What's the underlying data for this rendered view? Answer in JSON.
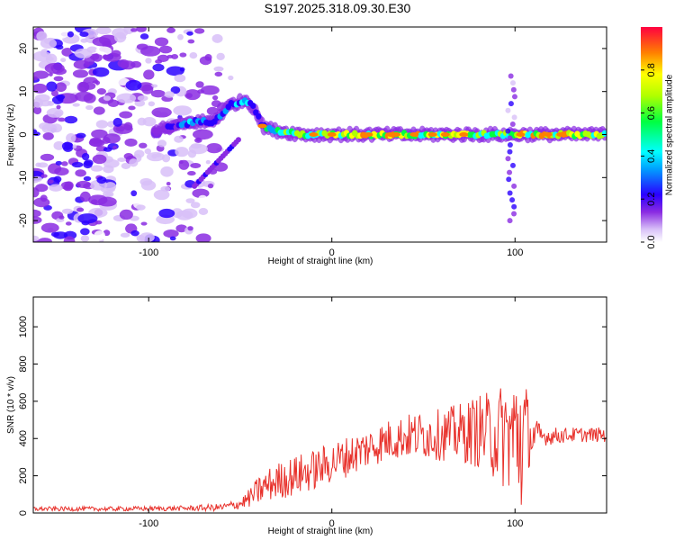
{
  "title": "S197.2025.318.09.30.E30",
  "chart_data": [
    {
      "type": "heatmap",
      "name": "spectrogram",
      "xlabel": "Height of straight line (km)",
      "ylabel": "Frequency (Hz)",
      "xlim": [
        -163,
        150
      ],
      "ylim": [
        -25,
        25
      ],
      "xticks": [
        -100,
        0,
        100
      ],
      "yticks": [
        20,
        10,
        0,
        -10,
        -20
      ],
      "colorbar": {
        "label": "Normalized spectral amplitude",
        "range": [
          0,
          1
        ],
        "ticks": [
          0.0,
          0.2,
          0.4,
          0.6,
          0.8
        ]
      },
      "ridge": {
        "x": [
          -95,
          -85,
          -75,
          -65,
          -55,
          -47,
          -42,
          -38,
          -32,
          -25,
          -15,
          -5,
          0,
          10,
          20,
          30,
          40,
          50,
          60,
          70,
          80,
          88,
          92,
          96,
          100,
          105,
          115,
          130,
          150
        ],
        "y": [
          1,
          2,
          3,
          3,
          7,
          8,
          6,
          2,
          1,
          0.5,
          0,
          0,
          0,
          0,
          0,
          0,
          0,
          0,
          0,
          0,
          0,
          0,
          0,
          0,
          0,
          0,
          0,
          0,
          0
        ],
        "amp": [
          0.3,
          0.35,
          0.45,
          0.3,
          0.4,
          0.55,
          0.45,
          0.5,
          0.6,
          0.7,
          0.75,
          0.8,
          0.85,
          0.85,
          0.9,
          0.95,
          0.9,
          0.85,
          0.85,
          0.85,
          0.8,
          0.7,
          0.7,
          0.75,
          0.85,
          0.9,
          0.95,
          0.9,
          0.85
        ]
      }
    },
    {
      "type": "line",
      "name": "snr",
      "xlabel": "Height of straight line (km)",
      "ylabel": "SNR (10 * v/v)",
      "xlim": [
        -163,
        150
      ],
      "ylim": [
        0,
        1160
      ],
      "xticks": [
        -100,
        0,
        100
      ],
      "yticks": [
        0,
        200,
        400,
        600,
        800,
        1000
      ],
      "series": [
        {
          "name": "SNR",
          "color": "#e8322c",
          "envelope_x": [
            -163,
            -120,
            -80,
            -60,
            -50,
            -45,
            -40,
            -35,
            -30,
            -20,
            -10,
            0,
            10,
            20,
            30,
            40,
            50,
            60,
            70,
            80,
            85,
            90,
            95,
            100,
            103,
            106,
            108,
            115,
            130,
            150
          ],
          "envelope_mean": [
            22,
            22,
            25,
            30,
            50,
            80,
            120,
            150,
            170,
            200,
            230,
            270,
            310,
            350,
            390,
            410,
            420,
            420,
            430,
            440,
            430,
            420,
            420,
            420,
            420,
            420,
            410,
            410,
            420,
            420
          ],
          "envelope_spread": [
            12,
            12,
            14,
            20,
            30,
            50,
            80,
            90,
            100,
            110,
            110,
            110,
            110,
            110,
            110,
            120,
            130,
            140,
            160,
            200,
            220,
            260,
            300,
            350,
            500,
            300,
            150,
            50,
            40,
            40
          ]
        }
      ]
    }
  ]
}
